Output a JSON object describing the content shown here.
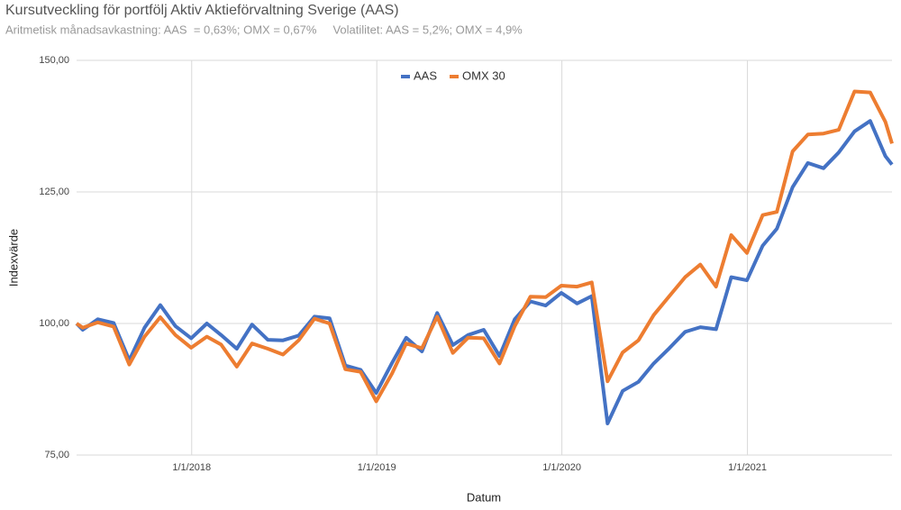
{
  "chart_data": {
    "type": "line",
    "title": "Kursutveckling för portfölj Aktiv Aktieförvaltning Sverige (AAS)",
    "subtitle": "Aritmetisk månadsavkastning: AAS  = 0,63%; OMX = 0,67%     Volatilitet: AAS = 5,2%; OMX = 4,9%",
    "xlabel": "Datum",
    "ylabel": "Indexvärde",
    "x": [
      "2017-05-19",
      "2017-05-31",
      "2017-06-30",
      "2017-07-31",
      "2017-08-31",
      "2017-09-30",
      "2017-10-31",
      "2017-11-30",
      "2017-12-31",
      "2018-01-31",
      "2018-02-28",
      "2018-03-31",
      "2018-04-30",
      "2018-05-31",
      "2018-06-30",
      "2018-07-31",
      "2018-08-31",
      "2018-09-30",
      "2018-10-31",
      "2018-11-30",
      "2018-12-31",
      "2019-01-31",
      "2019-02-28",
      "2019-03-31",
      "2019-04-30",
      "2019-05-31",
      "2019-06-30",
      "2019-07-31",
      "2019-08-31",
      "2019-09-30",
      "2019-10-31",
      "2019-11-30",
      "2019-12-31",
      "2020-01-31",
      "2020-02-29",
      "2020-03-31",
      "2020-04-30",
      "2020-05-31",
      "2020-06-30",
      "2020-07-31",
      "2020-08-31",
      "2020-09-30",
      "2020-10-31",
      "2020-11-30",
      "2020-12-31",
      "2021-01-31",
      "2021-02-28",
      "2021-03-31",
      "2021-04-30",
      "2021-05-31",
      "2021-06-30",
      "2021-07-31",
      "2021-08-31",
      "2021-09-30",
      "2021-10-13"
    ],
    "series": [
      {
        "name": "AAS",
        "color": "#4472c4",
        "values": [
          100,
          98.8,
          100.8,
          100.1,
          93,
          99.2,
          103.5,
          99.5,
          97.2,
          100,
          97.8,
          95.2,
          99.8,
          96.9,
          96.8,
          97.7,
          101.3,
          101,
          92,
          91.2,
          86.8,
          92.5,
          97.3,
          94.7,
          102,
          95.9,
          97.8,
          98.8,
          93.8,
          100.8,
          104.2,
          103.4,
          105.8,
          103.8,
          105.2,
          81,
          87.2,
          88.9,
          92.4,
          95.3,
          98.4,
          99.3,
          98.9,
          108.8,
          108.2,
          114.8,
          118,
          125.9,
          130.5,
          129.5,
          132.5,
          136.5,
          138.5,
          131.8,
          130.2
        ]
      },
      {
        "name": "OMX 30",
        "color": "#ed7d31",
        "values": [
          100,
          99.2,
          100.2,
          99.4,
          92.2,
          97.5,
          101.2,
          97.8,
          95.4,
          97.5,
          96,
          91.8,
          96.2,
          95.2,
          94.1,
          96.8,
          100.9,
          100,
          91.3,
          90.8,
          85.2,
          90.5,
          96.2,
          95.3,
          101.3,
          94.4,
          97.3,
          97.2,
          92.4,
          99.5,
          105.1,
          105,
          107.2,
          107,
          107.8,
          89,
          94.5,
          96.8,
          101.6,
          105.2,
          108.8,
          111.2,
          107,
          116.8,
          113.4,
          120.6,
          121.2,
          132.7,
          135.9,
          136.1,
          136.8,
          144.1,
          143.9,
          138.3,
          134.2
        ]
      }
    ],
    "xlim": [
      "2017-05-19",
      "2021-10-13"
    ],
    "xticks": [
      {
        "value": "2018-01-01",
        "label": "1/1/2018"
      },
      {
        "value": "2019-01-01",
        "label": "1/1/2019"
      },
      {
        "value": "2020-01-01",
        "label": "1/1/2020"
      },
      {
        "value": "2021-01-01",
        "label": "1/1/2021"
      }
    ],
    "ylim": [
      75,
      150
    ],
    "yticks": [
      {
        "value": 75,
        "label": "75,00"
      },
      {
        "value": 100,
        "label": "100,00"
      },
      {
        "value": 125,
        "label": "125,00"
      },
      {
        "value": 150,
        "label": "150,00"
      }
    ],
    "grid": true,
    "legend": "top"
  }
}
